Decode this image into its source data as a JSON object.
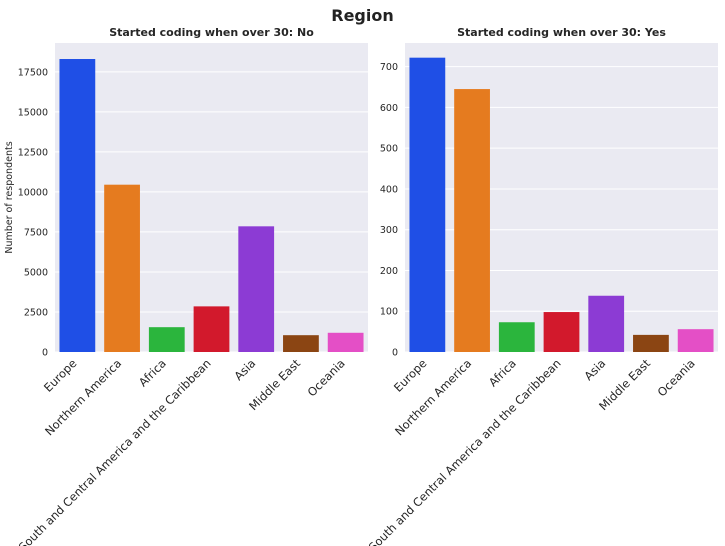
{
  "figure": {
    "suptitle": "Region"
  },
  "chart_data": [
    {
      "type": "bar",
      "title": "Started coding when over 30: No",
      "xlabel": "",
      "ylabel": "Number of respondents",
      "categories": [
        "Europe",
        "Northern America",
        "Africa",
        "South and Central America and the Caribbean",
        "Asia",
        "Middle East",
        "Oceania"
      ],
      "values": [
        18300,
        10450,
        1550,
        2850,
        7850,
        1050,
        1200
      ],
      "colors": [
        "#1f4fe6",
        "#e57b1f",
        "#2bb53d",
        "#d2192c",
        "#8c3bd4",
        "#8b4513",
        "#e44fc6"
      ],
      "ylim": [
        0,
        19300
      ],
      "yticks": [
        0,
        2500,
        5000,
        7500,
        10000,
        12500,
        15000,
        17500
      ],
      "grid": "y",
      "style": "seaborn-darkgrid"
    },
    {
      "type": "bar",
      "title": "Started coding when over 30: Yes",
      "xlabel": "",
      "ylabel": "",
      "categories": [
        "Europe",
        "Northern America",
        "Africa",
        "South and Central America and the Caribbean",
        "Asia",
        "Middle East",
        "Oceania"
      ],
      "values": [
        722,
        645,
        73,
        98,
        138,
        42,
        56
      ],
      "colors": [
        "#1f4fe6",
        "#e57b1f",
        "#2bb53d",
        "#d2192c",
        "#8c3bd4",
        "#8b4513",
        "#e44fc6"
      ],
      "ylim": [
        0,
        758
      ],
      "yticks": [
        0,
        100,
        200,
        300,
        400,
        500,
        600,
        700
      ],
      "grid": "y",
      "style": "seaborn-darkgrid"
    }
  ]
}
